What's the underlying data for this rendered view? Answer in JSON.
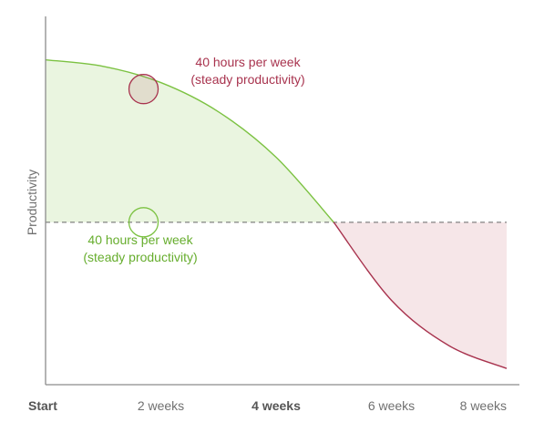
{
  "chart_data": {
    "type": "area",
    "title": "",
    "xlabel": "",
    "ylabel": "Productivity",
    "categories": [
      "Start",
      "2 weeks",
      "4 weeks",
      "6 weeks",
      "8 weeks"
    ],
    "bold_categories": [
      "Start",
      "4 weeks"
    ],
    "grid": false,
    "baseline_style": "dashed",
    "series": [
      {
        "values_note": "",
        "x": [
          0,
          1,
          2,
          3,
          4,
          5,
          6,
          7,
          8
        ],
        "y": [
          100,
          98,
          93,
          84,
          70,
          50,
          26,
          12,
          5
        ]
      }
    ],
    "baseline": 50,
    "ylim": [
      0,
      110
    ],
    "xlim": [
      0,
      8
    ],
    "colors": {
      "above_fill": "#eaf5e0",
      "below_fill": "#f6e6e8",
      "above_line": "#7cc242",
      "below_line": "#a8334e",
      "axis": "#8c8c8c",
      "baseline": "#666666",
      "red_text": "#a8334e",
      "green_text": "#66ad2d"
    },
    "annotations": [
      {
        "line1": "40 hours per week",
        "line2": "(steady productivity)",
        "color": "red",
        "x": 1.7,
        "y": 91
      },
      {
        "line1": "40 hours per week",
        "line2": "(steady productivity)",
        "color": "green",
        "x": 1.7,
        "y": 50
      }
    ]
  }
}
